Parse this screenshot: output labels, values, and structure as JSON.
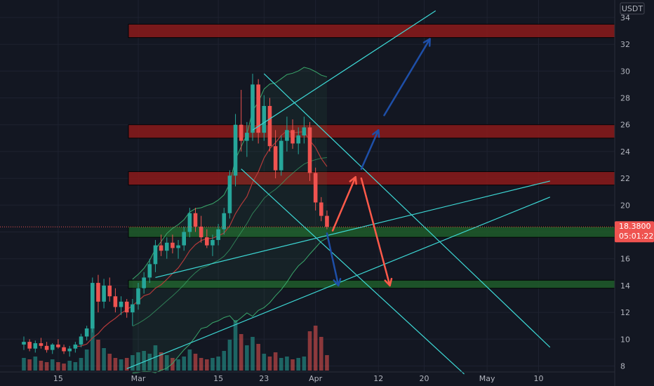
{
  "colors": {
    "background": "#131722",
    "grid": "#1e2230",
    "bull": "#26a69a",
    "bear": "#ef5350",
    "trendline": "#3dd9d6",
    "resistance_fill": "#8b1a1a",
    "support_fill": "#1e5c2a",
    "arrow_red": "#ff5a4a",
    "arrow_blue": "#1e4fa8",
    "bollinger": "#3aa86b",
    "ma": "#b33a3a",
    "price_tag": "#ef5350"
  },
  "price_tag": {
    "price": "18.3800",
    "countdown": "05:01:22"
  },
  "chart_data": {
    "type": "candlestick",
    "currency": "USDT",
    "yticks": [
      8,
      10,
      12,
      14,
      16,
      18,
      20,
      22,
      24,
      26,
      28,
      30,
      32,
      34
    ],
    "xticks": [
      {
        "label": "15",
        "day": -14
      },
      {
        "label": "Mar",
        "day": 0
      },
      {
        "label": "15",
        "day": 14
      },
      {
        "label": "23",
        "day": 22
      },
      {
        "label": "Apr",
        "day": 31
      },
      {
        "label": "12",
        "day": 42
      },
      {
        "label": "20",
        "day": 50
      },
      {
        "label": "May",
        "day": 61
      },
      {
        "label": "10",
        "day": 70
      }
    ],
    "zones": [
      {
        "kind": "resistance",
        "from": 32.5,
        "to": 33.5
      },
      {
        "kind": "resistance",
        "from": 25.0,
        "to": 26.0
      },
      {
        "kind": "resistance",
        "from": 21.5,
        "to": 22.5
      },
      {
        "kind": "support",
        "from": 17.6,
        "to": 18.4
      },
      {
        "kind": "support",
        "from": 13.8,
        "to": 14.4
      }
    ],
    "trendlines": [
      {
        "from": [
          20,
          25.6
        ],
        "to": [
          52,
          34.5
        ]
      },
      {
        "from": [
          22,
          29.8
        ],
        "to": [
          72,
          9.4
        ]
      },
      {
        "from": [
          18,
          22.7
        ],
        "to": [
          57,
          7.4
        ]
      },
      {
        "from": [
          3,
          14.6
        ],
        "to": [
          72,
          21.8
        ]
      },
      {
        "from": [
          -2,
          7.8
        ],
        "to": [
          72,
          20.6
        ]
      }
    ],
    "arrows": [
      {
        "color": "red",
        "from": [
          34,
          18.1
        ],
        "to": [
          38,
          22.1
        ]
      },
      {
        "color": "red",
        "from": [
          39,
          22.0
        ],
        "to": [
          44,
          14.0
        ]
      },
      {
        "color": "blue",
        "from": [
          33,
          17.9
        ],
        "to": [
          35,
          14.0
        ]
      },
      {
        "color": "blue",
        "from": [
          39,
          22.7
        ],
        "to": [
          42,
          25.6
        ]
      },
      {
        "color": "blue",
        "from": [
          43,
          26.7
        ],
        "to": [
          51,
          32.4
        ]
      }
    ],
    "candles": [
      [
        -20,
        9.6,
        10.2,
        9.2,
        9.8
      ],
      [
        -19,
        9.8,
        10.0,
        9.1,
        9.3
      ],
      [
        -18,
        9.3,
        9.9,
        9.0,
        9.7
      ],
      [
        -17,
        9.7,
        10.1,
        9.3,
        9.5
      ],
      [
        -16,
        9.5,
        9.8,
        9.0,
        9.2
      ],
      [
        -15,
        9.2,
        9.7,
        8.9,
        9.6
      ],
      [
        -14,
        9.6,
        10.0,
        9.3,
        9.4
      ],
      [
        -13,
        9.4,
        9.6,
        8.9,
        9.1
      ],
      [
        -12,
        9.1,
        9.5,
        8.7,
        9.3
      ],
      [
        -11,
        9.3,
        9.8,
        9.0,
        9.6
      ],
      [
        -10,
        9.6,
        10.4,
        9.4,
        10.2
      ],
      [
        -9,
        10.2,
        11.0,
        9.9,
        10.8
      ],
      [
        -8,
        10.8,
        14.6,
        10.5,
        14.2
      ],
      [
        -7,
        14.2,
        14.8,
        12.0,
        12.8
      ],
      [
        -6,
        12.8,
        14.5,
        12.3,
        14.0
      ],
      [
        -5,
        14.0,
        14.6,
        12.8,
        13.2
      ],
      [
        -4,
        13.2,
        13.8,
        12.0,
        12.4
      ],
      [
        -3,
        12.4,
        13.2,
        11.8,
        12.8
      ],
      [
        -2,
        12.8,
        13.0,
        11.6,
        12.0
      ],
      [
        -1,
        12.0,
        13.0,
        11.0,
        12.6
      ],
      [
        0,
        12.6,
        14.2,
        12.2,
        13.8
      ],
      [
        1,
        13.8,
        15.0,
        13.4,
        14.6
      ],
      [
        2,
        14.6,
        16.0,
        14.2,
        15.6
      ],
      [
        3,
        15.6,
        17.4,
        15.0,
        17.0
      ],
      [
        4,
        17.0,
        17.8,
        16.2,
        16.6
      ],
      [
        5,
        16.6,
        17.6,
        16.0,
        17.2
      ],
      [
        6,
        17.2,
        17.8,
        16.4,
        16.8
      ],
      [
        7,
        16.8,
        17.4,
        16.0,
        17.0
      ],
      [
        8,
        17.0,
        18.4,
        16.6,
        18.0
      ],
      [
        9,
        18.0,
        19.8,
        17.6,
        19.4
      ],
      [
        10,
        19.4,
        19.8,
        18.0,
        18.4
      ],
      [
        11,
        18.4,
        19.2,
        17.2,
        17.6
      ],
      [
        12,
        17.6,
        18.2,
        16.8,
        17.0
      ],
      [
        13,
        17.0,
        17.8,
        16.2,
        17.4
      ],
      [
        14,
        17.4,
        18.6,
        17.0,
        18.2
      ],
      [
        15,
        18.2,
        19.8,
        17.8,
        19.4
      ],
      [
        16,
        19.4,
        22.6,
        19.0,
        22.2
      ],
      [
        17,
        22.2,
        26.8,
        21.4,
        26.0
      ],
      [
        18,
        26.0,
        28.6,
        24.0,
        24.8
      ],
      [
        19,
        24.8,
        26.2,
        23.6,
        25.4
      ],
      [
        20,
        25.4,
        29.8,
        24.8,
        29.0
      ],
      [
        21,
        29.0,
        29.4,
        24.6,
        25.4
      ],
      [
        22,
        25.4,
        28.2,
        24.8,
        27.4
      ],
      [
        23,
        27.4,
        28.0,
        24.0,
        24.4
      ],
      [
        24,
        24.4,
        25.6,
        22.0,
        22.6
      ],
      [
        25,
        22.6,
        25.2,
        22.2,
        24.8
      ],
      [
        26,
        24.8,
        26.6,
        24.0,
        25.6
      ],
      [
        27,
        25.6,
        26.4,
        24.2,
        24.6
      ],
      [
        28,
        24.6,
        25.8,
        23.8,
        25.2
      ],
      [
        29,
        25.2,
        26.6,
        24.6,
        25.8
      ],
      [
        30,
        25.8,
        26.2,
        21.8,
        22.4
      ],
      [
        31,
        22.4,
        22.8,
        19.6,
        20.2
      ],
      [
        32,
        20.2,
        20.6,
        18.8,
        19.2
      ],
      [
        33,
        19.2,
        19.6,
        18.2,
        18.38
      ]
    ],
    "volume": [
      [
        -20,
        0.9
      ],
      [
        -19,
        0.8
      ],
      [
        -18,
        1.0
      ],
      [
        -17,
        0.7
      ],
      [
        -16,
        0.6
      ],
      [
        -15,
        0.8
      ],
      [
        -14,
        0.6
      ],
      [
        -13,
        0.5
      ],
      [
        -12,
        0.7
      ],
      [
        -11,
        0.6
      ],
      [
        -10,
        0.9
      ],
      [
        -9,
        1.5
      ],
      [
        -8,
        3.6
      ],
      [
        -7,
        2.2
      ],
      [
        -6,
        1.6
      ],
      [
        -5,
        1.2
      ],
      [
        -4,
        0.9
      ],
      [
        -3,
        0.8
      ],
      [
        -2,
        0.9
      ],
      [
        -1,
        1.1
      ],
      [
        0,
        1.3
      ],
      [
        1,
        1.4
      ],
      [
        2,
        1.2
      ],
      [
        3,
        1.8
      ],
      [
        4,
        1.3
      ],
      [
        5,
        1.1
      ],
      [
        6,
        0.9
      ],
      [
        7,
        0.8
      ],
      [
        8,
        1.0
      ],
      [
        9,
        1.5
      ],
      [
        10,
        1.2
      ],
      [
        11,
        0.9
      ],
      [
        12,
        0.8
      ],
      [
        13,
        0.9
      ],
      [
        14,
        1.0
      ],
      [
        15,
        1.4
      ],
      [
        16,
        2.2
      ],
      [
        17,
        3.6
      ],
      [
        18,
        2.6
      ],
      [
        19,
        1.8
      ],
      [
        20,
        2.4
      ],
      [
        21,
        1.9
      ],
      [
        22,
        1.2
      ],
      [
        23,
        1.0
      ],
      [
        24,
        1.3
      ],
      [
        25,
        0.9
      ],
      [
        26,
        1.0
      ],
      [
        27,
        0.8
      ],
      [
        28,
        0.9
      ],
      [
        29,
        1.0
      ],
      [
        30,
        2.8
      ],
      [
        31,
        3.2
      ],
      [
        32,
        2.4
      ],
      [
        33,
        1.1
      ]
    ]
  }
}
